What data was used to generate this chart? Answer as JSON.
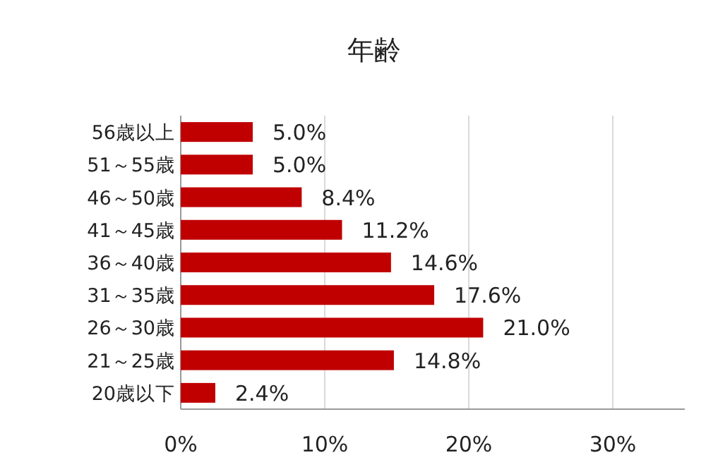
{
  "chart_data": {
    "type": "bar",
    "orientation": "horizontal",
    "title": "年齢",
    "categories": [
      "56歳以上",
      "51～55歳",
      "46～50歳",
      "41～45歳",
      "36～40歳",
      "31～35歳",
      "26～30歳",
      "21～25歳",
      "20歳以下"
    ],
    "values": [
      5.0,
      5.0,
      8.4,
      11.2,
      14.6,
      17.6,
      21.0,
      14.8,
      2.4
    ],
    "value_labels": [
      "5.0%",
      "5.0%",
      "8.4%",
      "11.2%",
      "14.6%",
      "17.6%",
      "21.0%",
      "14.8%",
      "2.4%"
    ],
    "color": "#c00000",
    "xlim": [
      0,
      35
    ],
    "xticks": [
      {
        "value": 0,
        "label": "0%"
      },
      {
        "value": 10,
        "label": "10%"
      },
      {
        "value": 20,
        "label": "20%"
      },
      {
        "value": 30,
        "label": "30%"
      }
    ],
    "grid": "x"
  }
}
